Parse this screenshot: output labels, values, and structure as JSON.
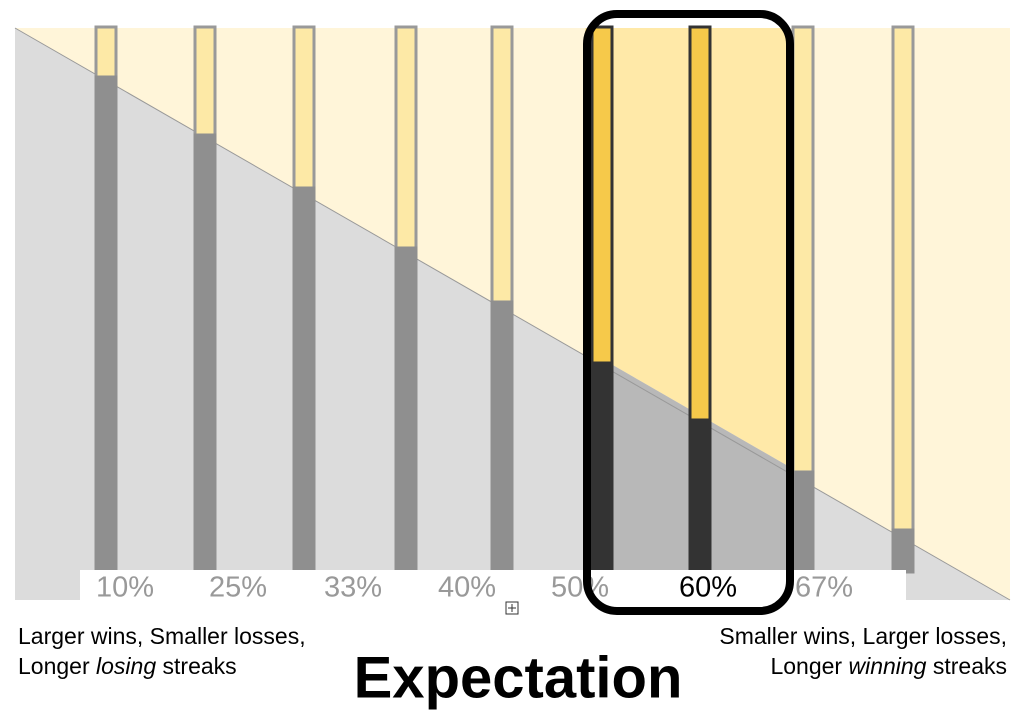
{
  "axis_labels": [
    "10%",
    "25%",
    "33%",
    "40%",
    "50%",
    "60%",
    "67%"
  ],
  "left_note": {
    "line1": "Larger wins, Smaller losses,",
    "line2": [
      "Longer ",
      "losing",
      " streaks"
    ]
  },
  "right_note": {
    "line1": "Smaller wins, Larger losses,",
    "line2": [
      "Longer ",
      "winning",
      " streaks"
    ]
  },
  "title": "Expectation"
}
